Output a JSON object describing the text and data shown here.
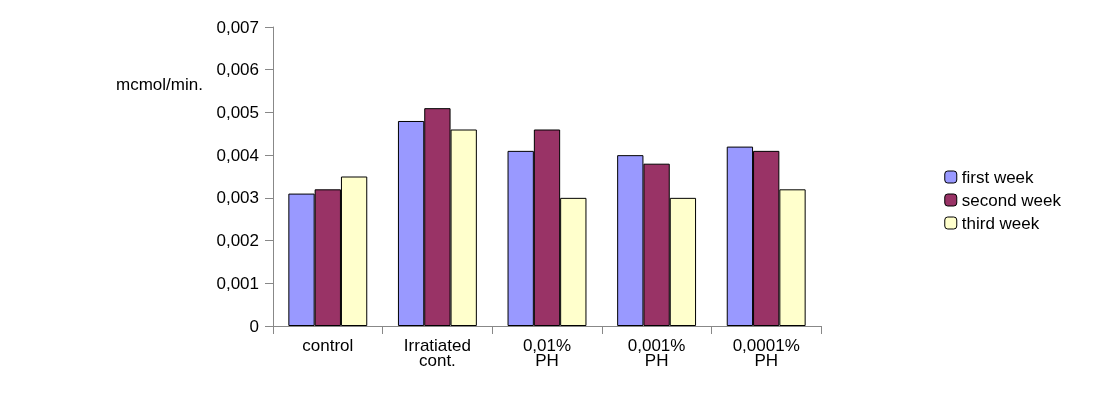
{
  "chart_data": {
    "type": "bar",
    "ylabel": "mcmol/min.",
    "categories": [
      "control",
      "Irratiated\ncont.",
      "0,01%\nPH",
      "0,001%\nPH",
      "0,0001%\nPH"
    ],
    "series": [
      {
        "name": "first week",
        "color": "#9999ff",
        "values": [
          0.0031,
          0.0048,
          0.0041,
          0.004,
          0.0042
        ]
      },
      {
        "name": "second week",
        "color": "#993366",
        "values": [
          0.0032,
          0.0051,
          0.0046,
          0.0038,
          0.0041
        ]
      },
      {
        "name": "third week",
        "color": "#ffffcc",
        "values": [
          0.0035,
          0.0046,
          0.003,
          0.003,
          0.0032
        ]
      }
    ],
    "ylim": [
      0,
      0.007
    ],
    "yticks": [
      {
        "value": 0,
        "label": "0"
      },
      {
        "value": 0.001,
        "label": "0,001"
      },
      {
        "value": 0.002,
        "label": "0,002"
      },
      {
        "value": 0.003,
        "label": "0,003"
      },
      {
        "value": 0.004,
        "label": "0,004"
      },
      {
        "value": 0.005,
        "label": "0,005"
      },
      {
        "value": 0.006,
        "label": "0,006"
      },
      {
        "value": 0.007,
        "label": "0,007"
      }
    ],
    "grid": false,
    "legend": "right"
  }
}
